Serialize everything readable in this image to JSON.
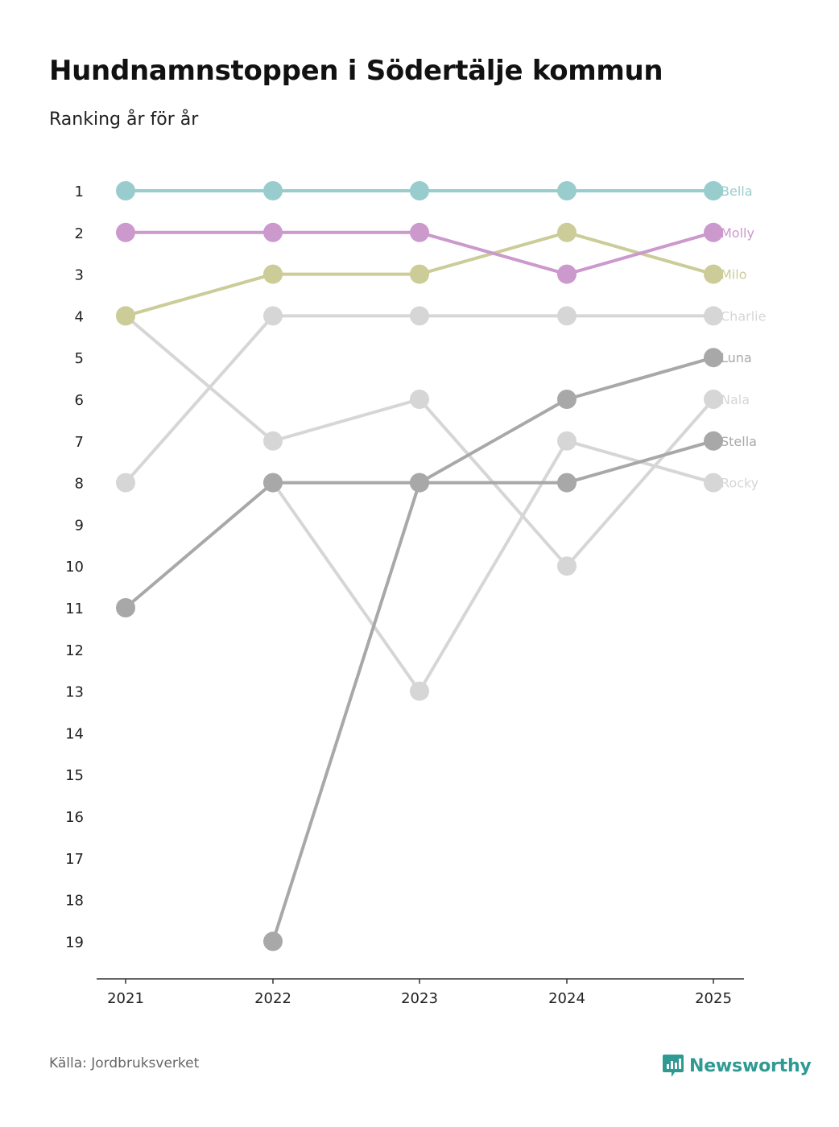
{
  "chart_data": {
    "type": "line",
    "title": "Hundnamnstoppen i Södertälje kommun",
    "subtitle": "Ranking år för år",
    "x": [
      "2021",
      "2022",
      "2023",
      "2024",
      "2025"
    ],
    "y_ticks": [
      "1",
      "2",
      "3",
      "4",
      "5",
      "6",
      "7",
      "8",
      "9",
      "10",
      "11",
      "12",
      "13",
      "14",
      "15",
      "16",
      "17",
      "18",
      "19"
    ],
    "ylim": [
      1,
      19
    ],
    "y_reversed": true,
    "grid": false,
    "series": [
      {
        "name": "Charlie",
        "color": "#d6d6d6",
        "values": [
          8,
          4,
          4,
          4,
          4
        ]
      },
      {
        "name": "Nala",
        "color": "#d6d6d6",
        "values": [
          4,
          7,
          6,
          10,
          6
        ]
      },
      {
        "name": "Rocky",
        "color": "#d6d6d6",
        "values": [
          null,
          8,
          13,
          7,
          8
        ]
      },
      {
        "name": "Luna",
        "color": "#a8a8a8",
        "values": [
          null,
          19,
          8,
          6,
          5
        ]
      },
      {
        "name": "Stella",
        "color": "#a8a8a8",
        "values": [
          11,
          8,
          8,
          8,
          7
        ]
      },
      {
        "name": "Milo",
        "color": "#cbcc98",
        "values": [
          4,
          3,
          3,
          2,
          3
        ]
      },
      {
        "name": "Molly",
        "color": "#cc99cc",
        "values": [
          2,
          2,
          2,
          3,
          2
        ]
      },
      {
        "name": "Bella",
        "color": "#99cccc",
        "values": [
          1,
          1,
          1,
          1,
          1
        ]
      }
    ]
  },
  "footer": {
    "source": "Källa: Jordbruksverket",
    "brand": "Newsworthy",
    "brand_color": "#2e9a93",
    "brand_icon": "bar-chart-speech-bubble-icon"
  }
}
